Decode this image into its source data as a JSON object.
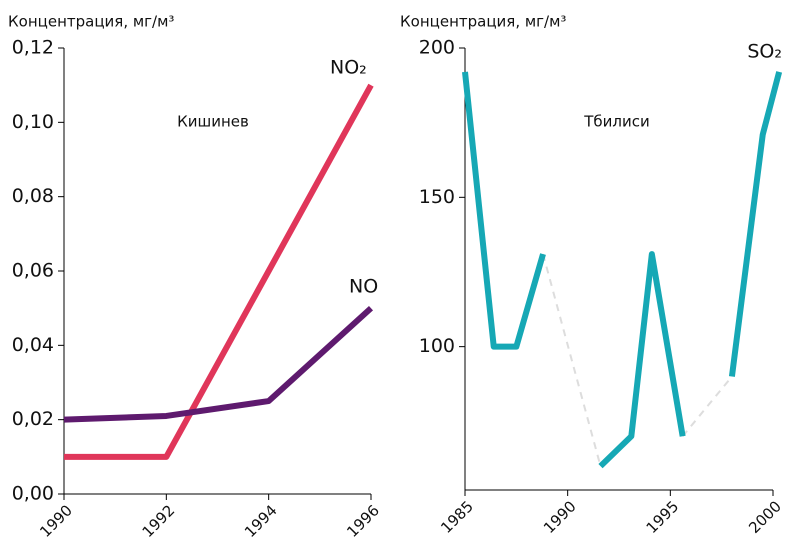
{
  "chart_data": [
    {
      "type": "line",
      "y_label": "Концентрация, мг/м³",
      "annotation": "Кишинев",
      "x": [
        1990,
        1992,
        1994,
        1996
      ],
      "series": [
        {
          "name": "NO₂",
          "color": "#e0365a",
          "values": [
            0.01,
            0.01,
            0.06,
            0.11
          ]
        },
        {
          "name": "NO",
          "color": "#5e1a6e",
          "values": [
            0.02,
            0.021,
            0.025,
            0.05
          ]
        }
      ],
      "xlim": [
        1990,
        1996
      ],
      "xticks": [
        1990,
        1992,
        1994,
        1996
      ],
      "ylim": [
        0,
        0.12
      ],
      "yticks": [
        {
          "value": 0,
          "label": "0,00"
        },
        {
          "value": 0.02,
          "label": "0,02"
        },
        {
          "value": 0.04,
          "label": "0,04"
        },
        {
          "value": 0.06,
          "label": "0,06"
        },
        {
          "value": 0.08,
          "label": "0,08"
        },
        {
          "value": 0.1,
          "label": "0,10"
        },
        {
          "value": 0.12,
          "label": "0,12"
        }
      ]
    },
    {
      "type": "line",
      "y_label": "Концентрация, мг/м³",
      "annotation": "Тбилиси",
      "x": [
        1985,
        1986.4,
        1987.5,
        1988.8,
        null,
        1991.6,
        1993.1,
        1994.1,
        1995.6,
        null,
        1998.0,
        1999.5,
        2000.3
      ],
      "series": [
        {
          "name": "SO₂",
          "color": "#16a8b5",
          "values": [
            192,
            100,
            100,
            131,
            null,
            60,
            70,
            131,
            70,
            null,
            90,
            171,
            192
          ]
        }
      ],
      "gap_color": "#dddddd",
      "xlim": [
        1985,
        2000
      ],
      "xticks": [
        1985,
        1990,
        1995,
        2000
      ],
      "ylim": [
        52,
        200
      ],
      "yticks": [
        100,
        150,
        200
      ]
    }
  ]
}
